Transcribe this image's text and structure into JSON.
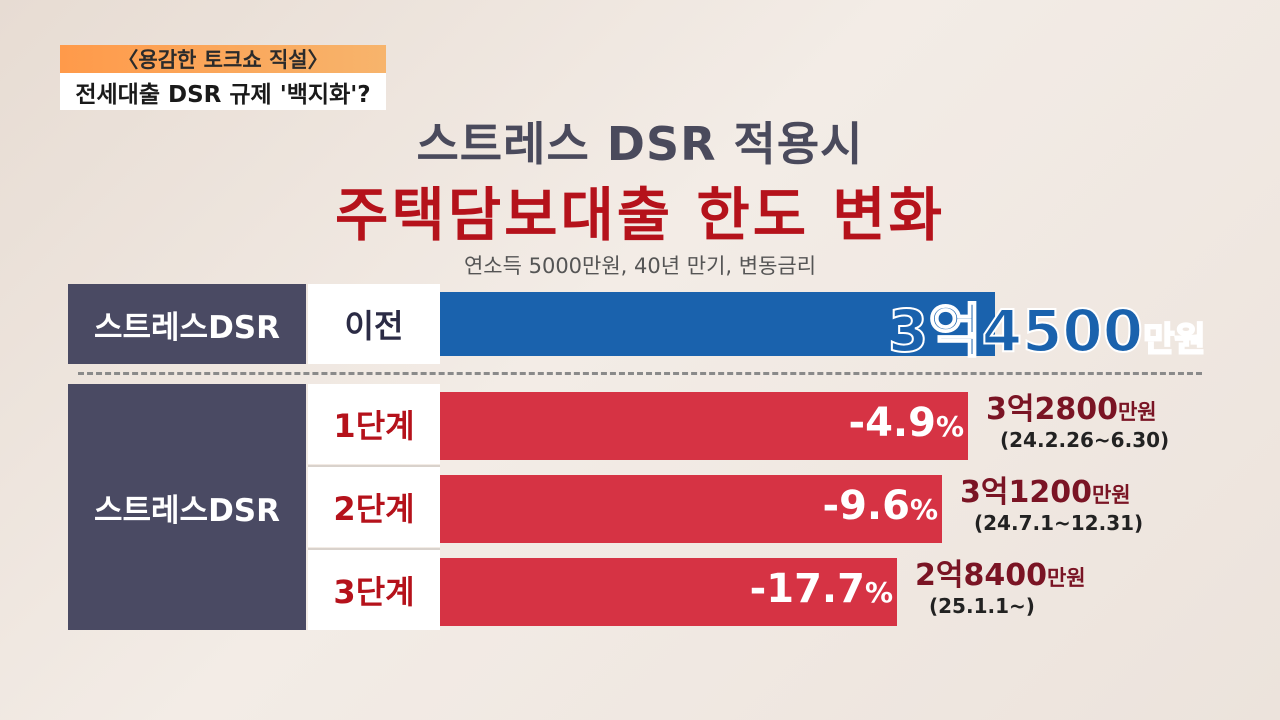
{
  "header": {
    "show_name": "〈용감한 토크쇼 직설〉",
    "segment_title": "전세대출 DSR 규제 '백지화'?"
  },
  "chart_data": {
    "type": "bar",
    "title": "스트레스 DSR 적용시",
    "subtitle": "주택담보대출 한도 변화",
    "note": "연소득 5000만원, 40년 만기, 변동금리",
    "unit": "만원",
    "group_labels": [
      "스트레스DSR",
      "스트레스DSR"
    ],
    "categories": [
      "이전",
      "1단계",
      "2단계",
      "3단계"
    ],
    "values": [
      34500,
      32800,
      31200,
      28400
    ],
    "value_labels": [
      {
        "amount": "3억4500",
        "unit": "만원"
      },
      {
        "amount": "3억2800",
        "unit": "만원"
      },
      {
        "amount": "3억1200",
        "unit": "만원"
      },
      {
        "amount": "2억8400",
        "unit": "만원"
      }
    ],
    "changes": [
      null,
      "-4.9",
      "-9.6",
      "-17.7"
    ],
    "change_unit": "%",
    "periods": [
      null,
      "(24.2.26~6.30)",
      "(24.7.1~12.31)",
      "(25.1.1~)"
    ],
    "colors": {
      "before": "#1a62ad",
      "stages": "#d63344",
      "title_accent": "#b5121b"
    }
  }
}
